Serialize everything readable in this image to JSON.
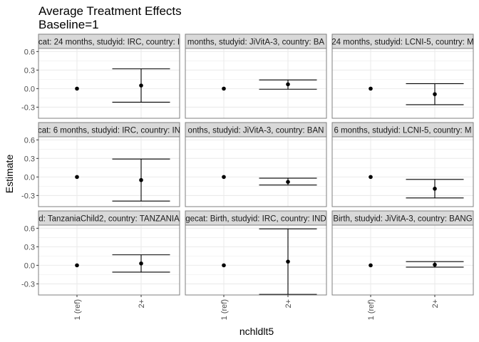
{
  "title": "Average Treatment Effects",
  "subtitle": "Baseline=1",
  "xlabel": "nchldlt5",
  "ylabel": "Estimate",
  "colors": {
    "strip_bg": "#d9d9d9",
    "panel_border": "#7f7f7f",
    "grid": "#ebebeb",
    "mark": "#000000"
  },
  "chart_data": {
    "type": "scatter",
    "error_bars": true,
    "facet_grid": {
      "rows": 3,
      "cols": 3
    },
    "categories": [
      "1 (ref)",
      "2+"
    ],
    "ylim": [
      -0.48,
      0.65
    ],
    "yticks": [
      -0.3,
      0.0,
      0.3,
      0.6
    ],
    "ytick_labels": [
      "-0.3",
      "0.0",
      "0.3",
      "0.6"
    ],
    "grid": true,
    "panels": [
      {
        "strip": "cat: 24 months, studyid: IRC, country: I",
        "points": [
          {
            "x": "1 (ref)",
            "y": 0.0
          },
          {
            "x": "2+",
            "y": 0.05,
            "lo": -0.22,
            "hi": 0.32
          }
        ]
      },
      {
        "strip": "months, studyid: JiVitA-3, country: BA",
        "points": [
          {
            "x": "1 (ref)",
            "y": 0.0
          },
          {
            "x": "2+",
            "y": 0.07,
            "lo": -0.01,
            "hi": 0.14
          }
        ]
      },
      {
        "strip": "24 months, studyid: LCNI-5, country: M",
        "points": [
          {
            "x": "1 (ref)",
            "y": 0.0
          },
          {
            "x": "2+",
            "y": -0.09,
            "lo": -0.26,
            "hi": 0.08
          }
        ]
      },
      {
        "strip": "cat: 6 months, studyid: IRC, country: IN",
        "points": [
          {
            "x": "1 (ref)",
            "y": 0.0
          },
          {
            "x": "2+",
            "y": -0.05,
            "lo": -0.39,
            "hi": 0.29
          }
        ]
      },
      {
        "strip": "onths, studyid: JiVitA-3, country: BAN",
        "points": [
          {
            "x": "1 (ref)",
            "y": 0.0
          },
          {
            "x": "2+",
            "y": -0.08,
            "lo": -0.13,
            "hi": -0.02
          }
        ]
      },
      {
        "strip": "6 months, studyid: LCNI-5, country: M",
        "points": [
          {
            "x": "1 (ref)",
            "y": 0.0
          },
          {
            "x": "2+",
            "y": -0.19,
            "lo": -0.34,
            "hi": -0.04
          }
        ]
      },
      {
        "strip": "d: TanzaniaChild2, country: TANZANIA",
        "points": [
          {
            "x": "1 (ref)",
            "y": 0.0
          },
          {
            "x": "2+",
            "y": 0.03,
            "lo": -0.11,
            "hi": 0.17
          }
        ]
      },
      {
        "strip": "gecat: Birth, studyid: IRC, country: IND",
        "points": [
          {
            "x": "1 (ref)",
            "y": 0.0
          },
          {
            "x": "2+",
            "y": 0.06,
            "lo": -0.47,
            "hi": 0.59
          }
        ]
      },
      {
        "strip": "Birth, studyid: JiVitA-3, country: BANG",
        "points": [
          {
            "x": "1 (ref)",
            "y": 0.0
          },
          {
            "x": "2+",
            "y": 0.01,
            "lo": -0.03,
            "hi": 0.06
          }
        ]
      }
    ]
  }
}
